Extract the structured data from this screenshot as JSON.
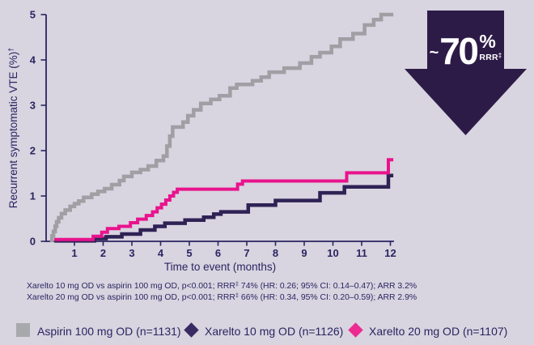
{
  "colors": {
    "background": "#d8d4e0",
    "ink": "#2a2560",
    "arrow": "#2d1b47",
    "arrow_text": "#ffffff",
    "aspirin_curve": "#a09fa4",
    "xarelto10_curve": "#2e2255",
    "xarelto20_curve": "#e9138d"
  },
  "chart_data": {
    "type": "line",
    "subtype": "kaplan-meier-step",
    "title": "",
    "xlabel": "Time to event (months)",
    "ylabel": "Recurrent symptomatic VTE (%)",
    "ylabel_sup": "†",
    "xlim": [
      0,
      12.1
    ],
    "ylim": [
      0,
      5
    ],
    "x_ticks": [
      1,
      2,
      3,
      4,
      5,
      6,
      7,
      8,
      9,
      10,
      11,
      12
    ],
    "y_ticks": [
      0,
      1,
      2,
      3,
      4,
      5
    ],
    "grid": false,
    "legend_position": "bottom",
    "series": [
      {
        "name": "Aspirin 100 mg OD",
        "n": 1131,
        "color": "#a09fa4",
        "points": [
          [
            0.15,
            0.02
          ],
          [
            0.22,
            0.12
          ],
          [
            0.27,
            0.22
          ],
          [
            0.33,
            0.33
          ],
          [
            0.38,
            0.43
          ],
          [
            0.45,
            0.52
          ],
          [
            0.55,
            0.61
          ],
          [
            0.68,
            0.69
          ],
          [
            0.85,
            0.77
          ],
          [
            1.0,
            0.83
          ],
          [
            1.15,
            0.89
          ],
          [
            1.32,
            0.97
          ],
          [
            1.6,
            1.04
          ],
          [
            1.82,
            1.1
          ],
          [
            2.05,
            1.16
          ],
          [
            2.3,
            1.25
          ],
          [
            2.57,
            1.34
          ],
          [
            2.72,
            1.43
          ],
          [
            3.0,
            1.52
          ],
          [
            3.3,
            1.58
          ],
          [
            3.57,
            1.66
          ],
          [
            3.85,
            1.78
          ],
          [
            4.1,
            1.88
          ],
          [
            4.22,
            2.1
          ],
          [
            4.32,
            2.32
          ],
          [
            4.42,
            2.52
          ],
          [
            4.78,
            2.63
          ],
          [
            4.95,
            2.77
          ],
          [
            5.15,
            2.9
          ],
          [
            5.4,
            3.04
          ],
          [
            5.75,
            3.13
          ],
          [
            6.05,
            3.21
          ],
          [
            6.42,
            3.38
          ],
          [
            6.65,
            3.46
          ],
          [
            7.2,
            3.54
          ],
          [
            7.5,
            3.62
          ],
          [
            7.78,
            3.73
          ],
          [
            8.3,
            3.82
          ],
          [
            8.85,
            3.93
          ],
          [
            9.25,
            4.07
          ],
          [
            9.55,
            4.16
          ],
          [
            9.95,
            4.3
          ],
          [
            10.25,
            4.46
          ],
          [
            10.7,
            4.58
          ],
          [
            11.1,
            4.77
          ],
          [
            11.42,
            4.89
          ],
          [
            11.68,
            5.0
          ]
        ]
      },
      {
        "name": "Xarelto 10 mg OD",
        "n": 1126,
        "color": "#2e2255",
        "points": [
          [
            0.3,
            0.01
          ],
          [
            1.7,
            0.06
          ],
          [
            2.1,
            0.1
          ],
          [
            2.65,
            0.16
          ],
          [
            3.3,
            0.25
          ],
          [
            3.8,
            0.33
          ],
          [
            4.15,
            0.4
          ],
          [
            4.85,
            0.47
          ],
          [
            5.5,
            0.53
          ],
          [
            5.85,
            0.6
          ],
          [
            6.1,
            0.65
          ],
          [
            7.05,
            0.8
          ],
          [
            8.0,
            0.9
          ],
          [
            9.55,
            1.07
          ],
          [
            10.4,
            1.2
          ],
          [
            11.93,
            1.45
          ]
        ]
      },
      {
        "name": "Xarelto 20 mg OD",
        "n": 1107,
        "color": "#e9138d",
        "points": [
          [
            0.3,
            0.04
          ],
          [
            1.65,
            0.11
          ],
          [
            1.95,
            0.2
          ],
          [
            2.15,
            0.28
          ],
          [
            2.55,
            0.33
          ],
          [
            2.95,
            0.41
          ],
          [
            3.2,
            0.49
          ],
          [
            3.5,
            0.57
          ],
          [
            3.72,
            0.65
          ],
          [
            3.88,
            0.74
          ],
          [
            4.03,
            0.82
          ],
          [
            4.18,
            0.91
          ],
          [
            4.32,
            1.0
          ],
          [
            4.45,
            1.08
          ],
          [
            4.58,
            1.15
          ],
          [
            6.68,
            1.26
          ],
          [
            6.85,
            1.33
          ],
          [
            10.48,
            1.51
          ],
          [
            11.93,
            1.8
          ]
        ]
      }
    ]
  },
  "annotation": {
    "approx": "~",
    "value": "70",
    "percent": "%",
    "label": "RRR",
    "label_sup": "‡"
  },
  "footnotes": [
    {
      "before": "Xarelto 10 mg OD vs aspirin 100 mg OD, p<0.001; RRR",
      "sup": "‡",
      "after": " 74% (HR: 0.26; 95% CI: 0.14–0.47); ARR 3.2%"
    },
    {
      "before": "Xarelto 20 mg OD vs aspirin 100 mg OD, p<0.001; RRR",
      "sup": "‡",
      "after": " 66% (HR: 0.34, 95% CI: 0.20–0.59); ARR 2.9%"
    }
  ],
  "legend": {
    "items": [
      {
        "label": "Aspirin 100 mg OD (n=1131)",
        "marker": "square",
        "color": "#a8a9ad"
      },
      {
        "label": "Xarelto 10 mg OD (n=1126)",
        "marker": "diamond",
        "color": "#3a2a62"
      },
      {
        "label": "Xarelto 20 mg OD (n=1107)",
        "marker": "diamond",
        "color": "#ec2a92"
      }
    ]
  }
}
